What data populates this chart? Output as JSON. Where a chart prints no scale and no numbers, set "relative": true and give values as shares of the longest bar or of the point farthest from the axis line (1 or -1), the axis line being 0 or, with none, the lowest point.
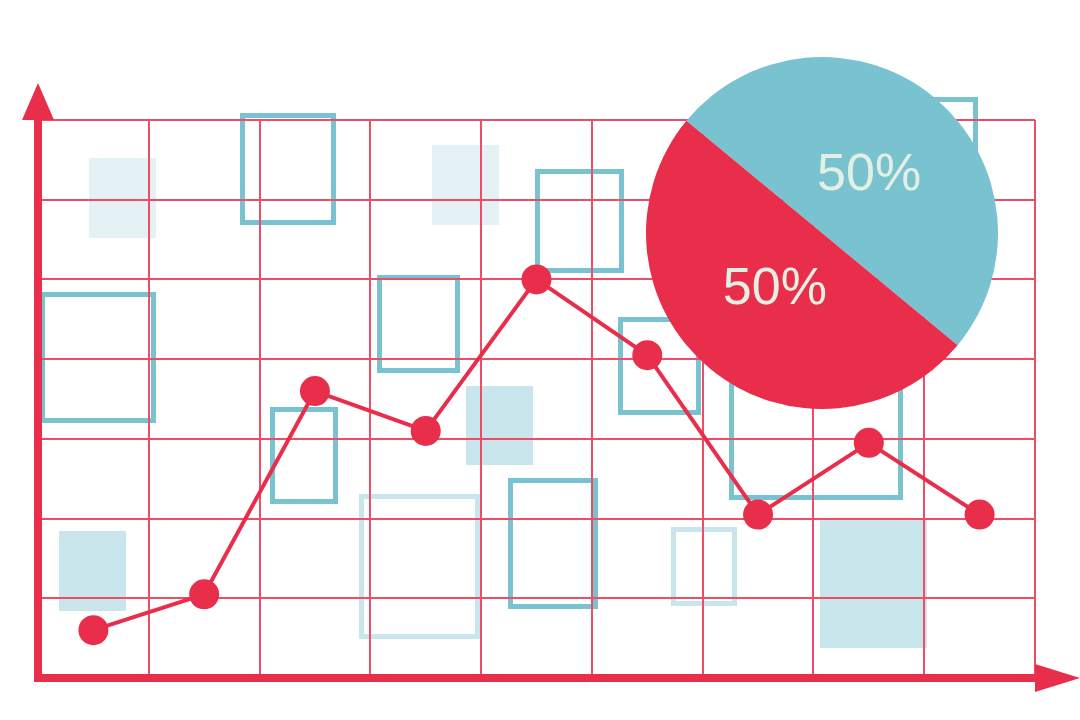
{
  "chart_data": [
    {
      "type": "line",
      "relative": true,
      "categories": [
        null,
        null,
        null,
        null,
        null,
        null,
        null,
        null,
        null
      ],
      "series": [
        {
          "color": "#e92e4b",
          "values": [
            0.12,
            0.21,
            0.72,
            0.62,
            1,
            0.81,
            0.41,
            0.59,
            0.41
          ]
        }
      ],
      "grid": true,
      "marker": "circle",
      "line_style": "solid",
      "tick_labels": false
    },
    {
      "type": "pie",
      "categories": [
        null,
        null
      ],
      "values": [
        50,
        50
      ],
      "colors": [
        "#79c3d1",
        "#e92e4b"
      ],
      "value_labels": [
        "50%",
        "50%"
      ]
    }
  ]
}
